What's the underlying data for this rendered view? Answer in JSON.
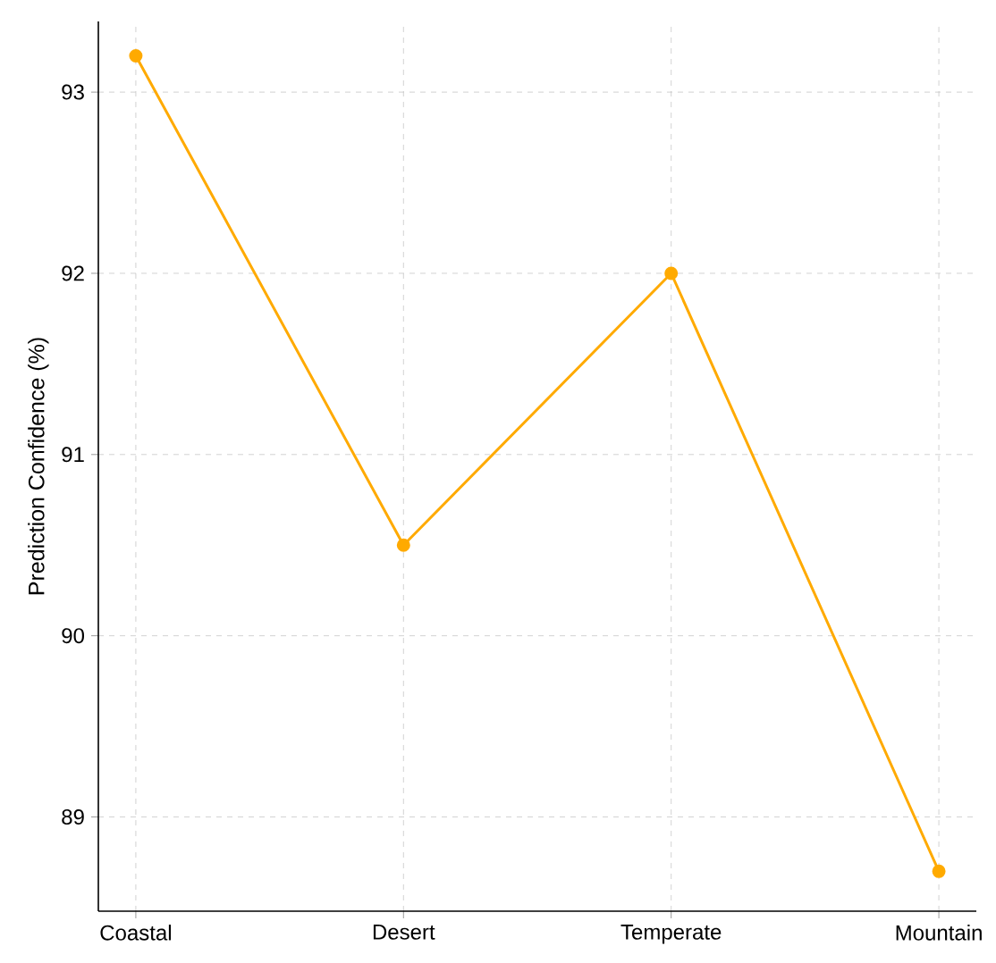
{
  "chart_data": {
    "type": "line",
    "ylabel": "Prediction Confidence (%)",
    "categories": [
      "Coastal",
      "Desert",
      "Temperate",
      "Mountain"
    ],
    "values": [
      93.2,
      90.5,
      92.0,
      88.7
    ],
    "color": "#ffaa00",
    "ylim": [
      88.48,
      93.39
    ],
    "yticks": [
      89,
      90,
      91,
      92,
      93
    ],
    "grid": true,
    "marker": "circle",
    "line_style": "solid"
  }
}
